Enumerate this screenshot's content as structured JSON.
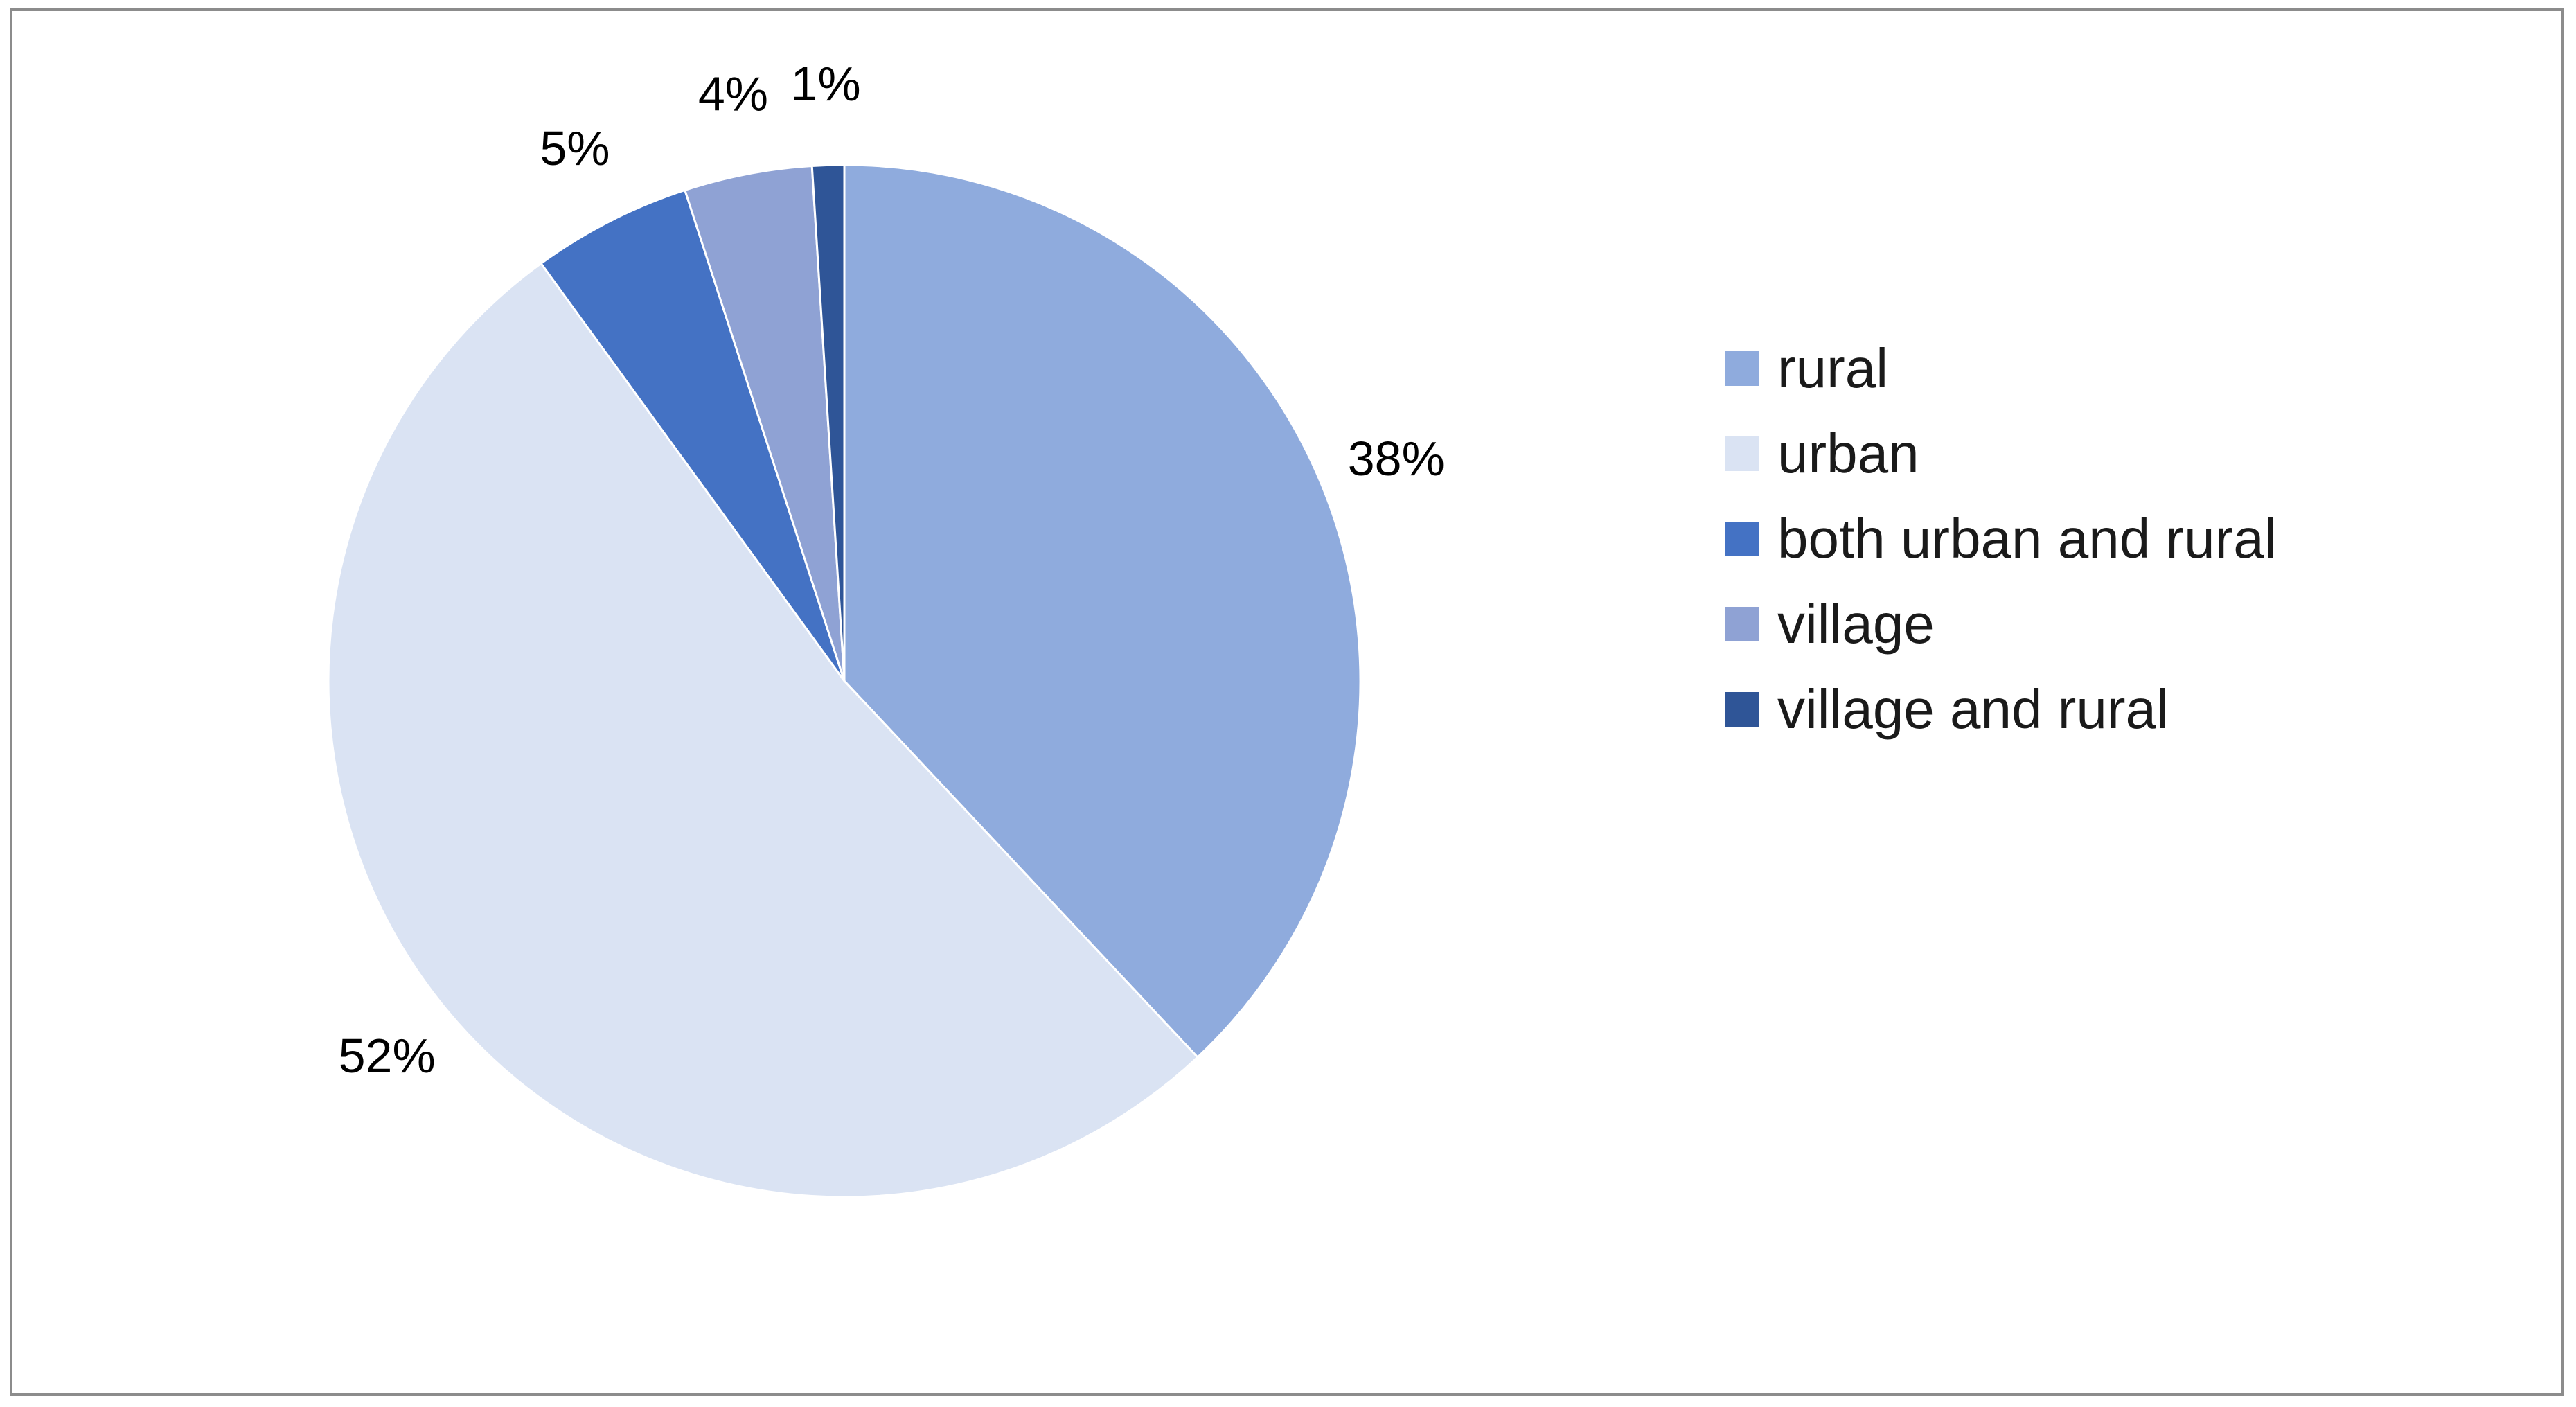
{
  "chart_data": {
    "type": "pie",
    "title": "",
    "categories": [
      "rural",
      "urban",
      "both urban and rural",
      "village",
      "village and rural"
    ],
    "values": [
      38,
      52,
      5,
      4,
      1
    ],
    "data_labels": [
      "38%",
      "52%",
      "5%",
      "4%",
      "1%"
    ],
    "colors": [
      "#8FABDD",
      "#DAE3F3",
      "#4472C4",
      "#8FA2D4",
      "#2F5597"
    ],
    "start_angle": "12 o'clock",
    "direction": "clockwise",
    "legend_position": "right",
    "border_color": "#8C8C8C"
  }
}
